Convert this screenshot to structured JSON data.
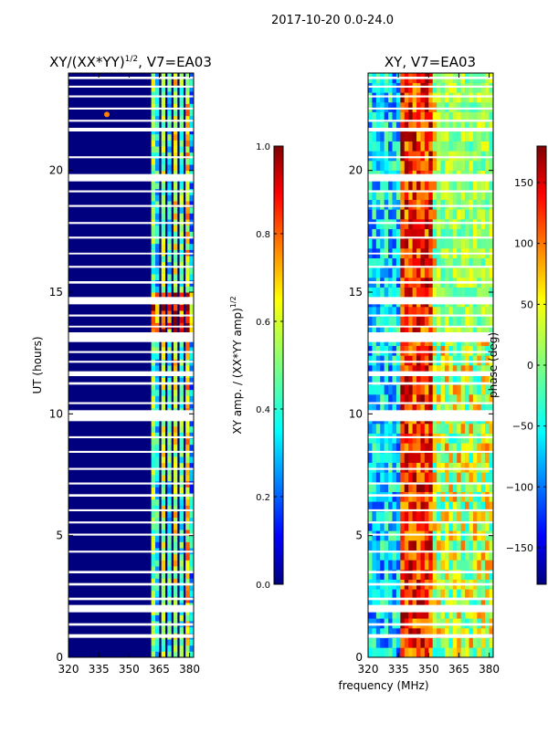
{
  "suptitle": "2017-10-20 0.0-24.0",
  "shared_xlabel": "frequency (MHz)",
  "colors": {
    "background": "#00007f",
    "gap": "#ffffff",
    "jet": [
      "#00007f",
      "#0000ff",
      "#007fff",
      "#00ffff",
      "#7fff7f",
      "#ffff00",
      "#ff7f00",
      "#ff0000",
      "#7f0000"
    ]
  },
  "gap_bands_hours": [
    [
      0.8,
      0.95
    ],
    [
      1.3,
      1.4
    ],
    [
      1.85,
      2.15
    ],
    [
      2.35,
      2.45
    ],
    [
      2.95,
      3.05
    ],
    [
      3.45,
      3.55
    ],
    [
      4.3,
      4.38
    ],
    [
      5.0,
      5.08
    ],
    [
      5.5,
      5.58
    ],
    [
      6.0,
      6.08
    ],
    [
      6.6,
      6.7
    ],
    [
      7.1,
      7.18
    ],
    [
      7.7,
      7.78
    ],
    [
      8.4,
      8.48
    ],
    [
      9.0,
      9.08
    ],
    [
      9.7,
      10.15
    ],
    [
      10.4,
      10.48
    ],
    [
      11.2,
      11.3
    ],
    [
      11.55,
      11.75
    ],
    [
      12.1,
      12.18
    ],
    [
      12.5,
      12.58
    ],
    [
      12.95,
      13.35
    ],
    [
      13.55,
      13.62
    ],
    [
      14.0,
      14.08
    ],
    [
      14.5,
      14.8
    ],
    [
      15.35,
      15.45
    ],
    [
      16.0,
      16.08
    ],
    [
      16.55,
      16.62
    ],
    [
      17.2,
      17.28
    ],
    [
      17.8,
      17.88
    ],
    [
      18.5,
      18.58
    ],
    [
      19.1,
      19.18
    ],
    [
      19.55,
      19.85
    ],
    [
      20.5,
      20.58
    ],
    [
      21.6,
      21.75
    ],
    [
      22.0,
      22.08
    ],
    [
      22.5,
      22.58
    ],
    [
      23.0,
      23.08
    ],
    [
      23.4,
      23.48
    ],
    [
      23.75,
      23.85
    ]
  ],
  "chart_data": [
    {
      "type": "heatmap",
      "title": "XY/(XX*YY)$^{1/2}$, V7=EA03",
      "title_main": "XY/(XX*YY)",
      "title_exp": "1/2",
      "title_tail": ", V7=EA03",
      "xlabel": "frequency (MHz)",
      "ylabel": "UT (hours)",
      "xlim": [
        320,
        382
      ],
      "ylim": [
        0,
        24
      ],
      "xticks": [
        320,
        335,
        350,
        365,
        380
      ],
      "yticks": [
        0,
        5,
        10,
        15,
        20
      ],
      "colorbar": {
        "label_main": "XY amp. / (XX*YY amp)",
        "label_exp": "1/2",
        "range": [
          0.0,
          1.0
        ],
        "ticks": [
          0.0,
          0.2,
          0.4,
          0.6,
          0.8,
          1.0
        ],
        "tick_labels": [
          "0.0",
          "0.2",
          "0.4",
          "0.6",
          "0.8",
          "1.0"
        ]
      },
      "band_description": "low amplitude (~0.0) below ~360 MHz; elevated amplitude 0.3-0.9 in vertical channels between ~360 and ~382 MHz; strongest near 13-15 UT",
      "channels": [
        {
          "mhz": 362,
          "level": 0.5
        },
        {
          "mhz": 364,
          "level": 0.35
        },
        {
          "mhz": 367,
          "level": 0.55
        },
        {
          "mhz": 370,
          "level": 0.4
        },
        {
          "mhz": 373,
          "level": 0.6
        },
        {
          "mhz": 376,
          "level": 0.45
        },
        {
          "mhz": 379,
          "level": 0.65
        },
        {
          "mhz": 381,
          "level": 0.3
        }
      ]
    },
    {
      "type": "heatmap",
      "title": "XY, V7=EA03",
      "xlabel": "frequency (MHz)",
      "ylabel": "",
      "xlim": [
        320,
        382
      ],
      "ylim": [
        0,
        24
      ],
      "xticks": [
        320,
        335,
        350,
        365,
        380
      ],
      "yticks": [
        0,
        5,
        10,
        15,
        20
      ],
      "colorbar": {
        "label": "phase (deg)",
        "range": [
          -180,
          180
        ],
        "ticks": [
          -150,
          -100,
          -50,
          0,
          50,
          100,
          150
        ],
        "tick_labels": [
          "−150",
          "−100",
          "−50",
          "0",
          "50",
          "100",
          "150"
        ]
      },
      "band_description": "phase spread across full -180 to 180 range; blue/cyan dominate 320-335 MHz, red/orange streak near 340-352 MHz, yellow/green/orange toward 355-382 MHz"
    }
  ]
}
